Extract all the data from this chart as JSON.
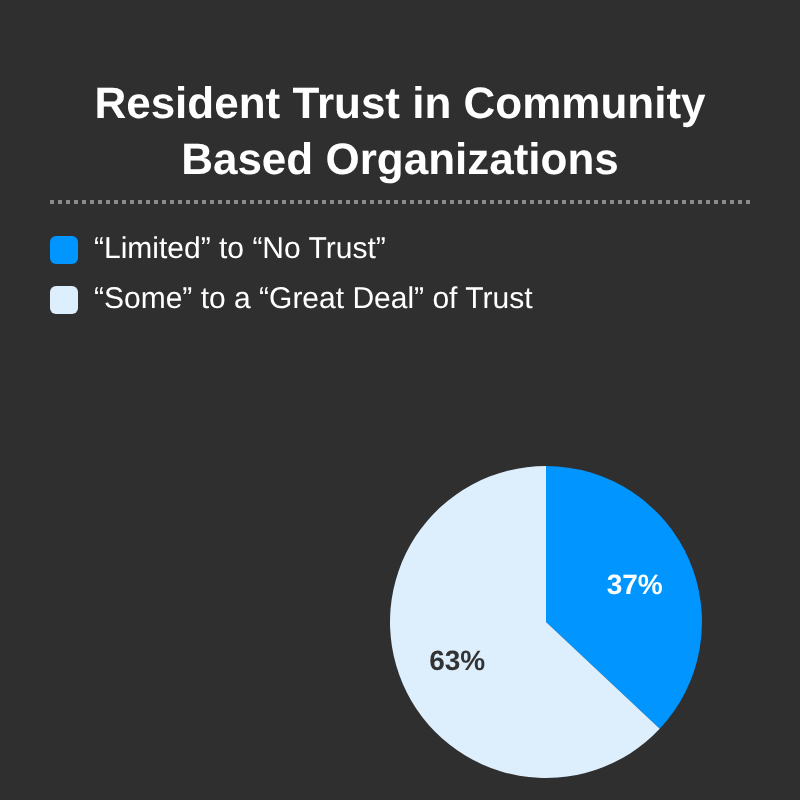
{
  "chart_data": {
    "type": "pie",
    "title": "Resident Trust in Community Based Organizations",
    "categories": [
      "“Limited” to “No Trust”",
      "“Some” to a “Great Deal” of Trust"
    ],
    "values": [
      37,
      63
    ],
    "colors": [
      "#0095ff",
      "#ddeefc"
    ],
    "value_labels": [
      "37%",
      "63%"
    ],
    "legend": "top left"
  }
}
